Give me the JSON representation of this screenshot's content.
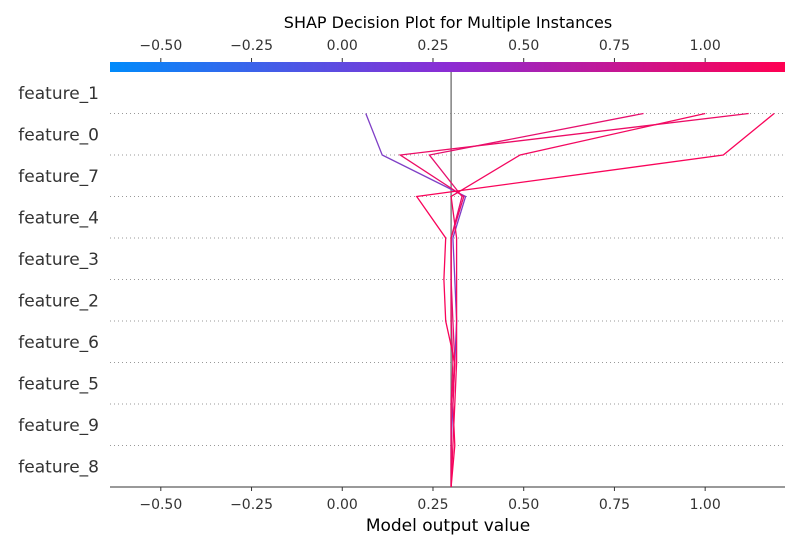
{
  "chart_data": {
    "type": "line",
    "title": "SHAP Decision Plot for Multiple Instances",
    "xlabel": "Model output value",
    "ylabel": "",
    "xlim": [
      -0.64,
      1.22
    ],
    "base_value": 0.3,
    "x_ticks": [
      -0.5,
      -0.25,
      0.0,
      0.25,
      0.5,
      0.75,
      1.0
    ],
    "x_tick_labels": [
      "−0.50",
      "−0.25",
      "0.00",
      "0.25",
      "0.50",
      "0.75",
      "1.00"
    ],
    "features": [
      "feature_1",
      "feature_0",
      "feature_7",
      "feature_4",
      "feature_3",
      "feature_2",
      "feature_6",
      "feature_5",
      "feature_9",
      "feature_8"
    ],
    "colormap": [
      "#008bfb",
      "#8b2cd4",
      "#ff0052"
    ],
    "grid": "dotted horizontal lines between features",
    "series": [
      {
        "color": "#7f3fc6",
        "values": [
          0.3,
          0.3,
          0.305,
          0.31,
          0.315,
          0.31,
          0.305,
          0.34,
          0.11,
          0.065
        ]
      },
      {
        "color": "#e6106e",
        "values": [
          0.3,
          0.3,
          0.3,
          0.31,
          0.305,
          0.3,
          0.3,
          0.33,
          0.24,
          0.83
        ]
      },
      {
        "color": "#ec0c66",
        "values": [
          0.3,
          0.3,
          0.3,
          0.305,
          0.3,
          0.3,
          0.3,
          0.335,
          0.16,
          1.12
        ]
      },
      {
        "color": "#f30860",
        "values": [
          0.3,
          0.305,
          0.31,
          0.315,
          0.315,
          0.315,
          0.315,
          0.3,
          0.49,
          1.0
        ]
      },
      {
        "color": "#f9045a",
        "values": [
          0.3,
          0.31,
          0.305,
          0.31,
          0.285,
          0.28,
          0.285,
          0.205,
          1.05,
          1.19
        ]
      }
    ]
  }
}
